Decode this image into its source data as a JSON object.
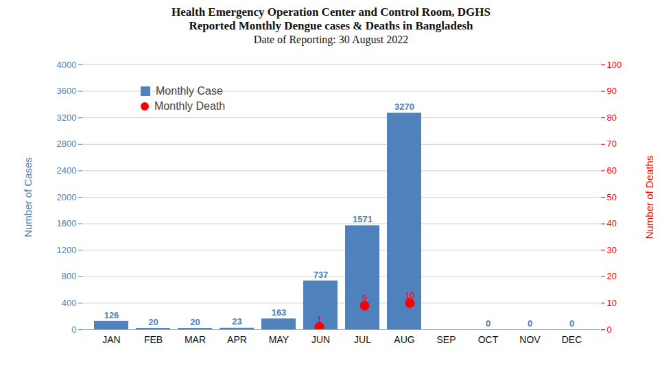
{
  "chart_data": {
    "type": "bar",
    "title": "Health Emergency Operation Center and Control Room, DGHS\nReported Monthly Dengue cases & Deaths in Bangladesh",
    "subtitle": "Date of Reporting: 30 August 2022",
    "y_label": "Number of Cases",
    "y2_label": "Number of Deaths",
    "categories": [
      "JAN",
      "FEB",
      "MAR",
      "APR",
      "MAY",
      "JUN",
      "JUL",
      "AUG",
      "SEP",
      "OCT",
      "NOV",
      "DEC"
    ],
    "series": [
      {
        "name": "Monthly Case",
        "type": "bar",
        "color": "#4f81bd",
        "values": [
          126,
          20,
          20,
          23,
          163,
          737,
          1571,
          3270,
          null,
          0,
          0,
          0
        ]
      },
      {
        "name": "Monthly Death",
        "type": "scatter",
        "color": "#ff0000",
        "marker": "circle",
        "axis": "y2",
        "values": [
          null,
          null,
          null,
          null,
          null,
          1,
          9,
          10,
          null,
          null,
          null,
          null
        ]
      }
    ],
    "ylim": [
      0,
      4000
    ],
    "yticks": [
      0,
      400,
      800,
      1200,
      1600,
      2000,
      2400,
      2800,
      3200,
      3600,
      4000
    ],
    "y2lim": [
      0,
      100
    ],
    "y2ticks": [
      0,
      10,
      20,
      30,
      40,
      50,
      60,
      70,
      80,
      90,
      100
    ],
    "grid": true,
    "data_labels": true,
    "legend": "upper left"
  }
}
